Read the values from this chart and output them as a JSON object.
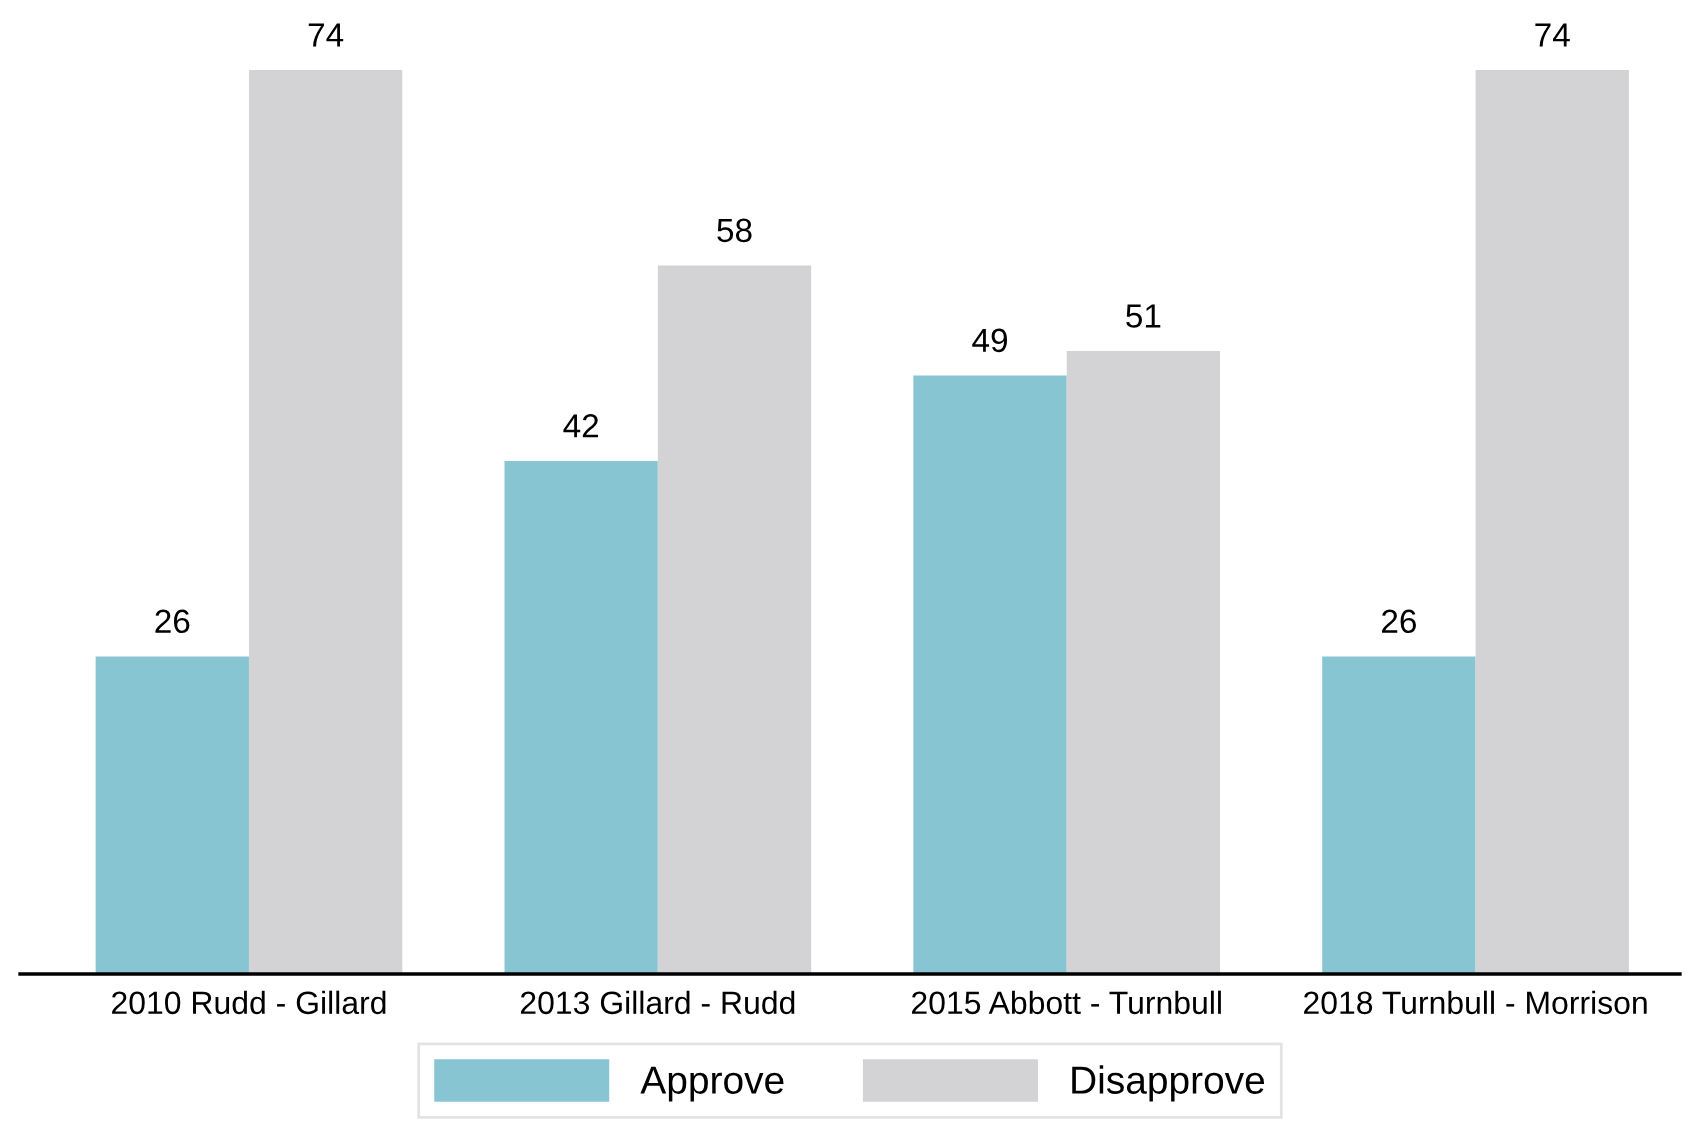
{
  "chart_data": {
    "type": "bar",
    "categories": [
      "2010 Rudd - Gillard",
      "2013 Gillard - Rudd",
      "2015 Abbott - Turnbull",
      "2018 Turnbull - Morrison"
    ],
    "series": [
      {
        "name": "Approve",
        "color": "#88c5d3",
        "values": [
          26,
          42,
          49,
          26
        ]
      },
      {
        "name": "Disapprove",
        "color": "#d3d3d5",
        "values": [
          74,
          58,
          51,
          74
        ]
      }
    ],
    "data_labels": true,
    "legend": "bottom",
    "grid": false
  }
}
